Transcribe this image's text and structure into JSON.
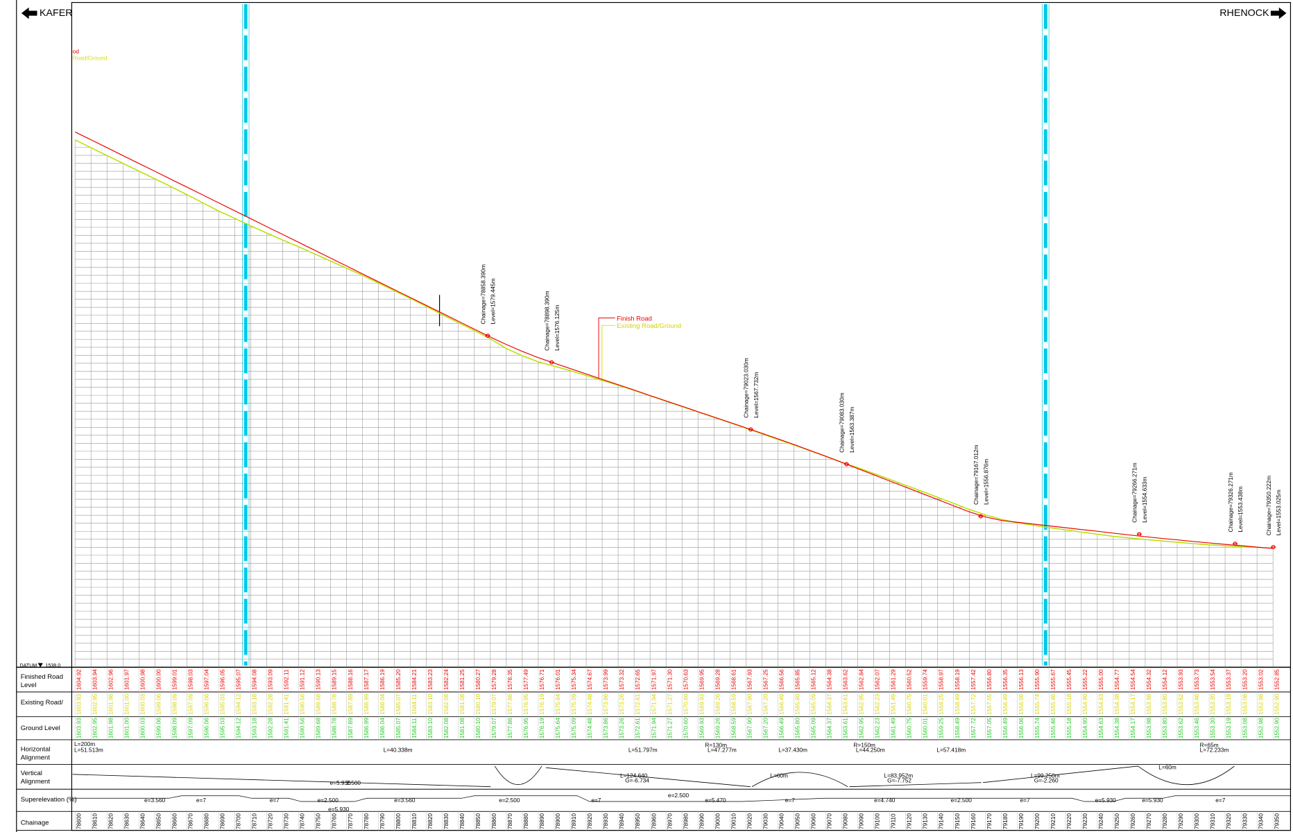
{
  "header": {
    "left_direction": "KAFER",
    "right_direction": "RHENOCK"
  },
  "corner_legend": [
    "od",
    "Road/Ground"
  ],
  "legend": {
    "finished": "Finish Road",
    "existing": "Existing Road/Ground"
  },
  "datum": {
    "label": "DATUM",
    "value": "1538.0"
  },
  "band_labels": [
    [
      "Finished Road",
      "Level"
    ],
    [
      "Existing Road/"
    ],
    [
      "Ground Level"
    ],
    [
      "Horizontal",
      "Alignment"
    ],
    [
      "Vertical",
      "Alignment"
    ],
    [
      "Superelevation (%)"
    ],
    [
      "Chainage"
    ]
  ],
  "chainages": [
    "78600",
    "78610",
    "78620",
    "78630",
    "78640",
    "78650",
    "78660",
    "78670",
    "78680",
    "78690",
    "78700",
    "78710",
    "78720",
    "78730",
    "78740",
    "78750",
    "78760",
    "78770",
    "78780",
    "78790",
    "78800",
    "78810",
    "78820",
    "78830",
    "78840",
    "78850",
    "78860",
    "78870",
    "78880",
    "78890",
    "78900",
    "78910",
    "78920",
    "78930",
    "78940",
    "78950",
    "78960",
    "78970",
    "78980",
    "78990",
    "79000",
    "79010",
    "79020",
    "79030",
    "79040",
    "79050",
    "79060",
    "79070",
    "79080",
    "79090",
    "79100",
    "79110",
    "79120",
    "79130",
    "79140",
    "79150",
    "79160",
    "79170",
    "79180",
    "79190",
    "79200",
    "79210",
    "79220",
    "79230",
    "79240",
    "79250",
    "79260",
    "79270",
    "79280",
    "79290",
    "79300",
    "79310",
    "79320",
    "79330",
    "79340",
    "79350"
  ],
  "finished_levels": [
    "1604.92",
    "1603.94",
    "1602.96",
    "1601.97",
    "1600.98",
    "1600.00",
    "1599.01",
    "1598.03",
    "1597.04",
    "1596.05",
    "1595.07",
    "1594.08",
    "1593.09",
    "1592.11",
    "1591.12",
    "1590.13",
    "1589.15",
    "1588.16",
    "1587.17",
    "1586.19",
    "1585.20",
    "1584.21",
    "1583.23",
    "1582.24",
    "1581.25",
    "1580.27",
    "1579.28",
    "1578.35",
    "1577.49",
    "1576.71",
    "1576.01",
    "1575.34",
    "1574.67",
    "1573.99",
    "1573.32",
    "1572.65",
    "1571.97",
    "1571.30",
    "1570.63",
    "1569.95",
    "1569.28",
    "1568.61",
    "1567.93",
    "1567.25",
    "1566.56",
    "1565.85",
    "1565.12",
    "1564.38",
    "1563.62",
    "1562.84",
    "1562.07",
    "1561.29",
    "1560.52",
    "1559.74",
    "1558.97",
    "1558.19",
    "1557.42",
    "1556.80",
    "1556.35",
    "1556.13",
    "1555.90",
    "1555.67",
    "1555.45",
    "1555.22",
    "1555.00",
    "1554.77",
    "1554.54",
    "1554.32",
    "1554.12",
    "1553.93",
    "1553.73",
    "1553.54",
    "1553.37",
    "1553.20",
    "1553.02",
    "1552.85"
  ],
  "existing_levels": [
    "1603.93",
    "1602.95",
    "1601.98",
    "1601.00",
    "1600.03",
    "1599.06",
    "1598.09",
    "1597.09",
    "1596.06",
    "1595.03",
    "1594.12",
    "1593.18",
    "1592.28",
    "1591.41",
    "1590.56",
    "1589.68",
    "1588.78",
    "1587.89",
    "1586.99",
    "1586.04",
    "1585.07",
    "1584.11",
    "1583.10",
    "1582.08",
    "1581.08",
    "1580.10",
    "1579.07",
    "1577.86",
    "1576.95",
    "1576.19",
    "1575.64",
    "1575.09",
    "1574.48",
    "1573.86",
    "1573.26",
    "1572.61",
    "1571.94",
    "1571.27",
    "1570.60",
    "1569.93",
    "1569.26",
    "1568.59",
    "1567.90",
    "1567.20",
    "1566.49",
    "1565.80",
    "1565.09",
    "1564.37",
    "1563.61",
    "1562.95",
    "1562.23",
    "1561.49",
    "1560.75",
    "1560.01",
    "1559.25",
    "1558.49",
    "1557.72",
    "1557.05",
    "1556.49",
    "1556.06",
    "1555.74",
    "1555.46",
    "1555.18",
    "1554.90",
    "1554.63",
    "1554.38",
    "1554.17",
    "1553.98",
    "1553.80",
    "1553.62",
    "1553.46",
    "1553.30",
    "1553.19",
    "1553.08",
    "1552.98",
    "1552.90"
  ],
  "callouts": [
    {
      "chainage": 78858.39,
      "level": 1579.445,
      "chainage_label": "Chainage=78858.390m",
      "level_label": "Level=1579.445m"
    },
    {
      "chainage": 78898.39,
      "level": 1576.125,
      "chainage_label": "Chainage=78898.390m",
      "level_label": "Level=1576.125m"
    },
    {
      "chainage": 79023.03,
      "level": 1567.732,
      "chainage_label": "Chainage=79023.030m",
      "level_label": "Level=1567.732m"
    },
    {
      "chainage": 79083.03,
      "level": 1563.387,
      "chainage_label": "Chainage=79083.030m",
      "level_label": "Level=1563.387m"
    },
    {
      "chainage": 79167.012,
      "level": 1556.876,
      "chainage_label": "Chainage=79167.012m",
      "level_label": "Level=1556.876m"
    },
    {
      "chainage": 79266.271,
      "level": 1554.633,
      "chainage_label": "Chainage=79266.271m",
      "level_label": "Level=1554.633m"
    },
    {
      "chainage": 79326.271,
      "level": 1553.438,
      "chainage_label": "Chainage=79326.271m",
      "level_label": "Level=1553.438m"
    },
    {
      "chainage": 79350.222,
      "level": 1553.025,
      "chainage_label": "Chainage=79350.222m",
      "level_label": "Level=1553.025m"
    }
  ],
  "horizontal_alignment": [
    "L=200m",
    "L=51.513m",
    "L=40.338m",
    "L=51.797m",
    "R=130m",
    "L=47.277m",
    "L=37.430m",
    "R=150m",
    "L=44.250m",
    "L=57.418m",
    "R=65m",
    "L=72.233m"
  ],
  "vertical_alignment": [
    "e=5.930",
    "2.500",
    "L=124.640",
    "G=-6.734",
    "L=60m",
    "L=83.952m",
    "G=-7.752",
    "L=99.250m",
    "G=-2.260",
    "L=60m"
  ],
  "superelevation": [
    "e=3.560",
    "e=7",
    "e=7",
    "e=2.500",
    "e=5.930",
    "e=3.560",
    "e=2.500",
    "e=7",
    "e=2.500",
    "e=5.470",
    "e=7",
    "e=4.740",
    "e=2.500",
    "e=7",
    "e=5.930",
    "e=5.930",
    "e=7"
  ]
}
